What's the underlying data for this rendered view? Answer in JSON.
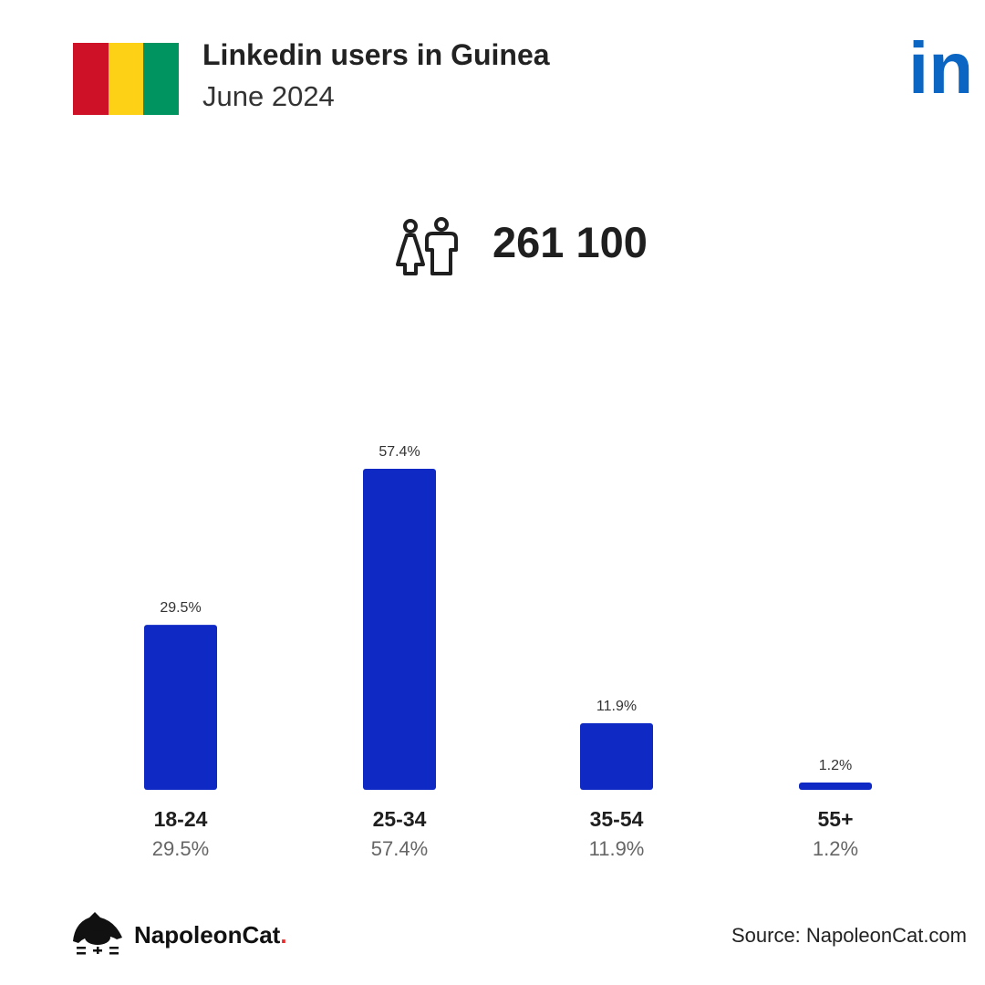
{
  "header": {
    "title": "Linkedin users in Guinea",
    "subtitle": "June 2024",
    "flag_colors": [
      "#ce1126",
      "#fcd116",
      "#009460"
    ],
    "logo_icon": "linkedin-logo-icon",
    "logo_text": "in",
    "logo_color": "#0a66c2"
  },
  "summary": {
    "icon": "users-icon",
    "total": "261 100"
  },
  "chart_data": {
    "type": "bar",
    "categories": [
      "18-24",
      "25-34",
      "35-54",
      "55+"
    ],
    "values": [
      29.5,
      57.4,
      11.9,
      1.2
    ],
    "value_labels": [
      "29.5%",
      "57.4%",
      "11.9%",
      "1.2%"
    ],
    "ylim": [
      0,
      57.4
    ],
    "bar_color": "#0f2ac4",
    "grid": false,
    "legend": "none"
  },
  "footer": {
    "brand_icon": "napoleoncat-logo-icon",
    "brand_name": "NapoleonCat",
    "brand_dot": ".",
    "source": "Source: NapoleonCat.com"
  }
}
